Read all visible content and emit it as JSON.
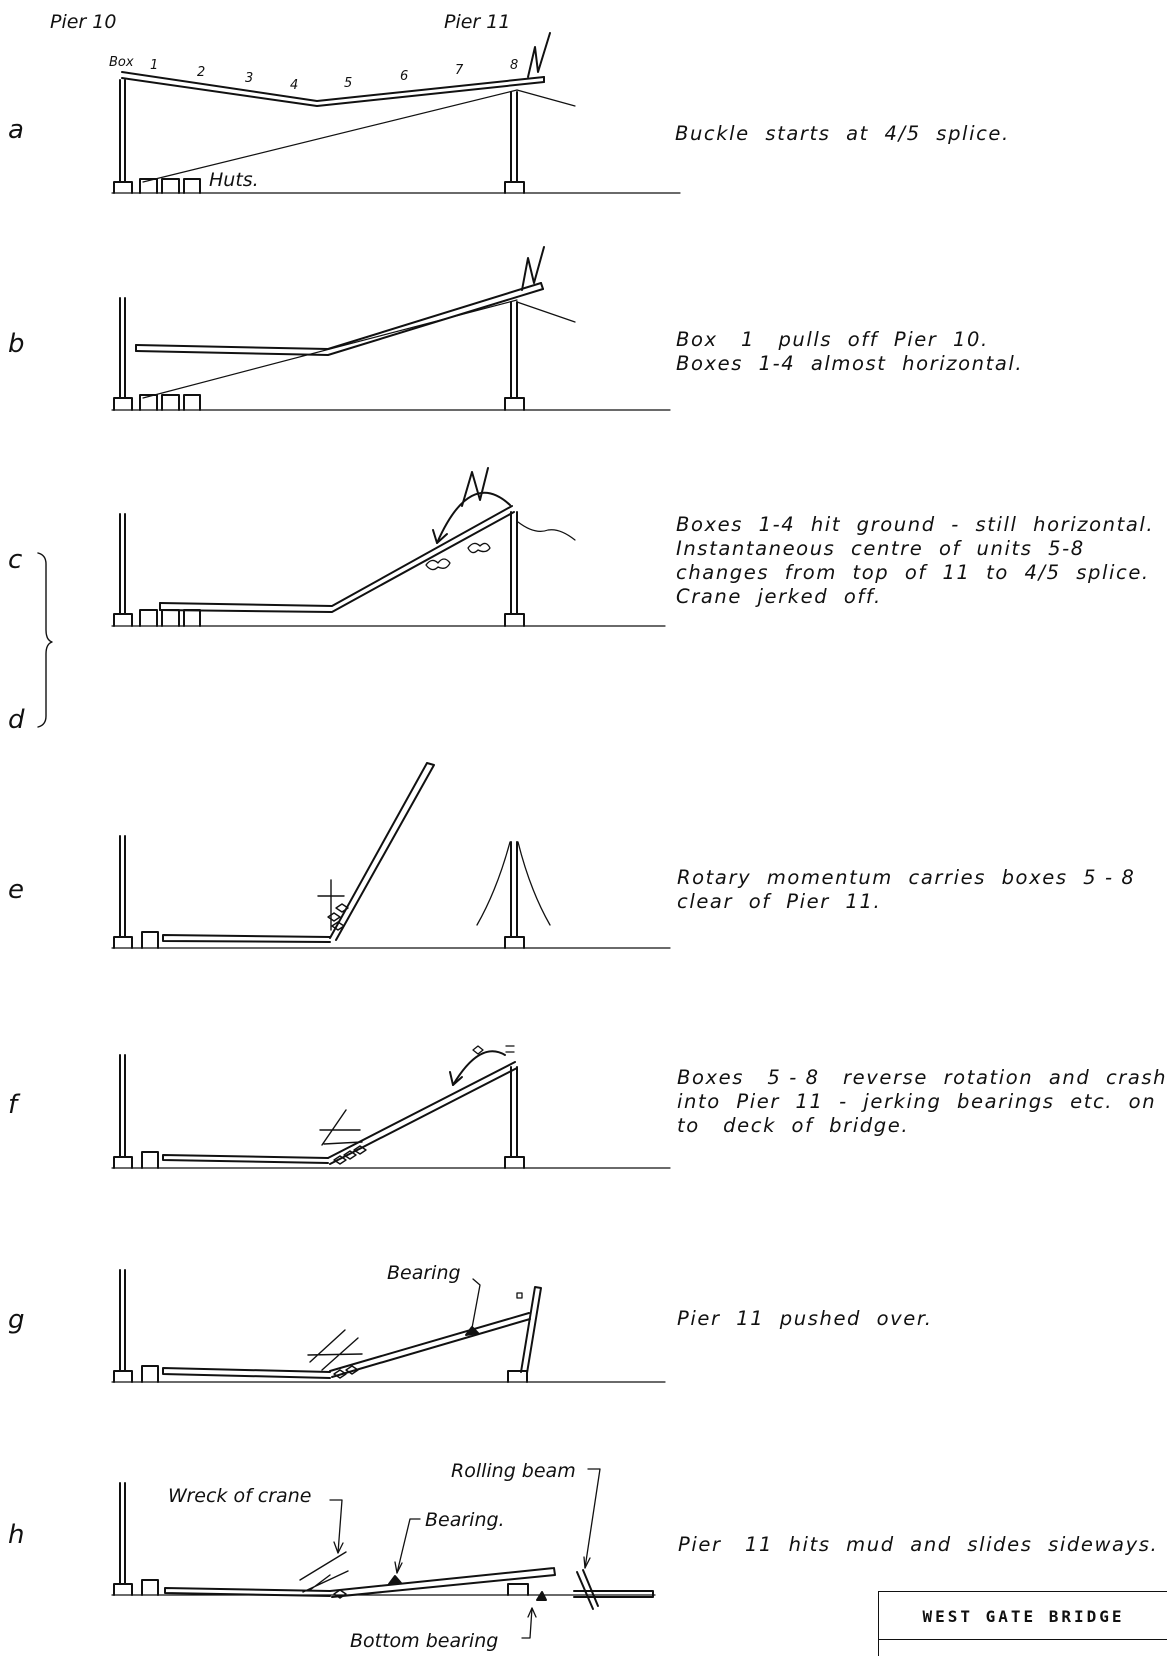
{
  "labels": {
    "pier10": "Pier 10",
    "pier11": "Pier 11",
    "box": "Box",
    "box_numbers": [
      "1",
      "2",
      "3",
      "4",
      "5",
      "6",
      "7",
      "8"
    ],
    "huts": "Huts.",
    "bearing_g": "Bearing",
    "wreck_of_crane": "Wreck of crane",
    "bearing_h": "Bearing.",
    "rolling_beam": "Rolling beam",
    "bottom_bearing": "Bottom bearing"
  },
  "steps": {
    "a": {
      "letter": "a",
      "caption": "Buckle  starts  at  4/5  splice."
    },
    "b": {
      "letter": "b",
      "caption": "Box   1   pulls  off  Pier  10.\nBoxes  1-4  almost  horizontal."
    },
    "c": {
      "letter": "c",
      "caption": "Boxes  1-4  hit  ground  -  still  horizontal.\nInstantaneous  centre  of  units  5-8\nchanges  from  top  of  11  to  4/5  splice.\nCrane  jerked  off."
    },
    "d": {
      "letter": "d"
    },
    "e": {
      "letter": "e",
      "caption": "Rotary  momentum  carries  boxes  5 - 8\nclear  of  Pier  11."
    },
    "f": {
      "letter": "f",
      "caption": "Boxes   5 - 8   reverse  rotation  and  crash\ninto  Pier  11  -  jerking  bearings  etc.  on\nto   deck  of  bridge."
    },
    "g": {
      "letter": "g",
      "caption": "Pier  11  pushed  over."
    },
    "h": {
      "letter": "h",
      "caption": "Pier   11  hits  mud  and  slides  sideways."
    }
  },
  "title_block": {
    "title": "WEST  GATE  BRIDGE"
  }
}
